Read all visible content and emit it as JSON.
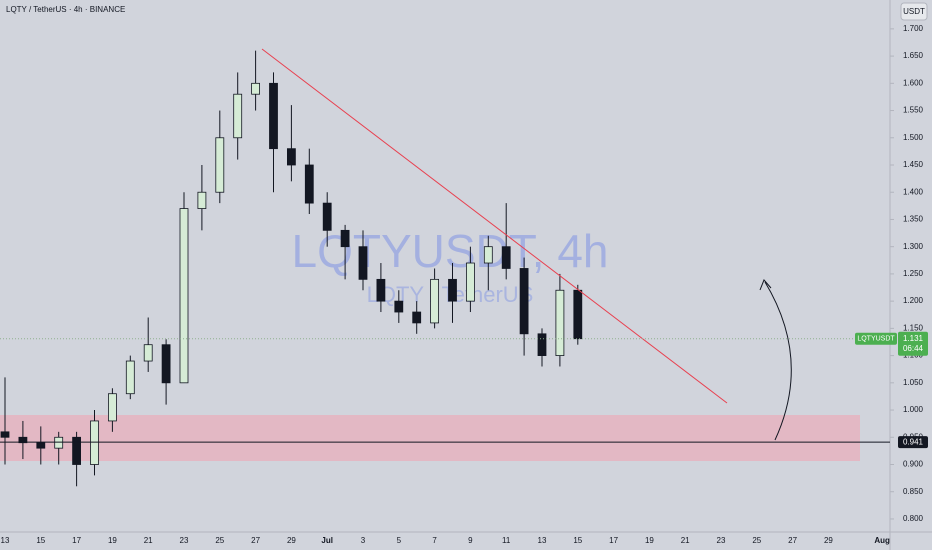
{
  "chart_data": {
    "type": "candlestick",
    "title": "LQTY / TetherUS · 4h · BINANCE",
    "currency": "USDT",
    "watermark": "LQTYUSDT, 4h",
    "watermark_subtitle": "LQTY / TetherUS",
    "symbol": "LQTYUSDT",
    "last_price": 1.131,
    "countdown": "06:44",
    "level": 0.941,
    "categories": [
      "13",
      null,
      "15",
      null,
      "17",
      null,
      "19",
      null,
      "21",
      null,
      "23",
      null,
      "25",
      null,
      "27",
      null,
      "29",
      null,
      "Jul",
      null,
      "3",
      null,
      "5",
      null,
      "7",
      null,
      "9",
      null,
      "11",
      null,
      "13",
      null,
      "15",
      null,
      "17",
      null,
      "19",
      null,
      "21",
      null,
      "23",
      null,
      "25",
      null,
      "27",
      null,
      "29",
      null,
      null,
      "Aug"
    ],
    "open": [
      0.96,
      0.95,
      0.94,
      0.93,
      0.95,
      0.9,
      0.98,
      1.03,
      1.09,
      1.12,
      1.05,
      1.37,
      1.4,
      1.5,
      1.58,
      1.6,
      1.48,
      1.45,
      1.38,
      1.33,
      1.3,
      1.24,
      1.2,
      1.18,
      1.16,
      1.24,
      1.2,
      1.27,
      1.3,
      1.26,
      1.14,
      1.1,
      1.22,
      null,
      null,
      null,
      null,
      null,
      null,
      null,
      null,
      null,
      null,
      null,
      null,
      null,
      null,
      null,
      null,
      null
    ],
    "high": [
      1.06,
      0.98,
      0.97,
      0.96,
      0.96,
      1.0,
      1.04,
      1.1,
      1.17,
      1.13,
      1.4,
      1.45,
      1.55,
      1.62,
      1.66,
      1.62,
      1.56,
      1.48,
      1.4,
      1.34,
      1.33,
      1.27,
      1.22,
      1.2,
      1.26,
      1.27,
      1.3,
      1.32,
      1.38,
      1.28,
      1.15,
      1.25,
      1.23,
      null,
      null,
      null,
      null,
      null,
      null,
      null,
      null,
      null,
      null,
      null,
      null,
      null,
      null,
      null,
      null,
      null
    ],
    "low": [
      0.9,
      0.91,
      0.9,
      0.9,
      0.86,
      0.88,
      0.96,
      1.02,
      1.07,
      1.01,
      1.05,
      1.33,
      1.38,
      1.46,
      1.55,
      1.4,
      1.42,
      1.36,
      1.3,
      1.24,
      1.22,
      1.18,
      1.16,
      1.14,
      1.15,
      1.16,
      1.18,
      1.22,
      1.24,
      1.1,
      1.08,
      1.08,
      1.12,
      null,
      null,
      null,
      null,
      null,
      null,
      null,
      null,
      null,
      null,
      null,
      null,
      null,
      null,
      null,
      null,
      null
    ],
    "close": [
      0.95,
      0.94,
      0.93,
      0.95,
      0.9,
      0.98,
      1.03,
      1.09,
      1.12,
      1.05,
      1.37,
      1.4,
      1.5,
      1.58,
      1.6,
      1.48,
      1.45,
      1.38,
      1.33,
      1.3,
      1.24,
      1.2,
      1.18,
      1.16,
      1.24,
      1.2,
      1.27,
      1.3,
      1.26,
      1.14,
      1.1,
      1.22,
      1.131,
      null,
      null,
      null,
      null,
      null,
      null,
      null,
      null,
      null,
      null,
      null,
      null,
      null,
      null,
      null,
      null,
      null
    ],
    "up_color": "#d6ecd6",
    "down_color": "#131722",
    "ylim": [
      0.743,
      1.753
    ],
    "yticks": [
      {
        "value": 0.8,
        "label": "0.800"
      },
      {
        "value": 0.85,
        "label": "0.850"
      },
      {
        "value": 0.9,
        "label": "0.900"
      },
      {
        "value": 0.95,
        "label": "0.950"
      },
      {
        "value": 1.0,
        "label": "1.000"
      },
      {
        "value": 1.05,
        "label": "1.050"
      },
      {
        "value": 1.1,
        "label": "1.100"
      },
      {
        "value": 1.15,
        "label": "1.150"
      },
      {
        "value": 1.2,
        "label": "1.200"
      },
      {
        "value": 1.25,
        "label": "1.250"
      },
      {
        "value": 1.3,
        "label": "1.300"
      },
      {
        "value": 1.35,
        "label": "1.350"
      },
      {
        "value": 1.4,
        "label": "1.400"
      },
      {
        "value": 1.45,
        "label": "1.450"
      },
      {
        "value": 1.5,
        "label": "1.500"
      },
      {
        "value": 1.55,
        "label": "1.550"
      },
      {
        "value": 1.6,
        "label": "1.600"
      },
      {
        "value": 1.65,
        "label": "1.650"
      },
      {
        "value": 1.7,
        "label": "1.700"
      }
    ]
  }
}
